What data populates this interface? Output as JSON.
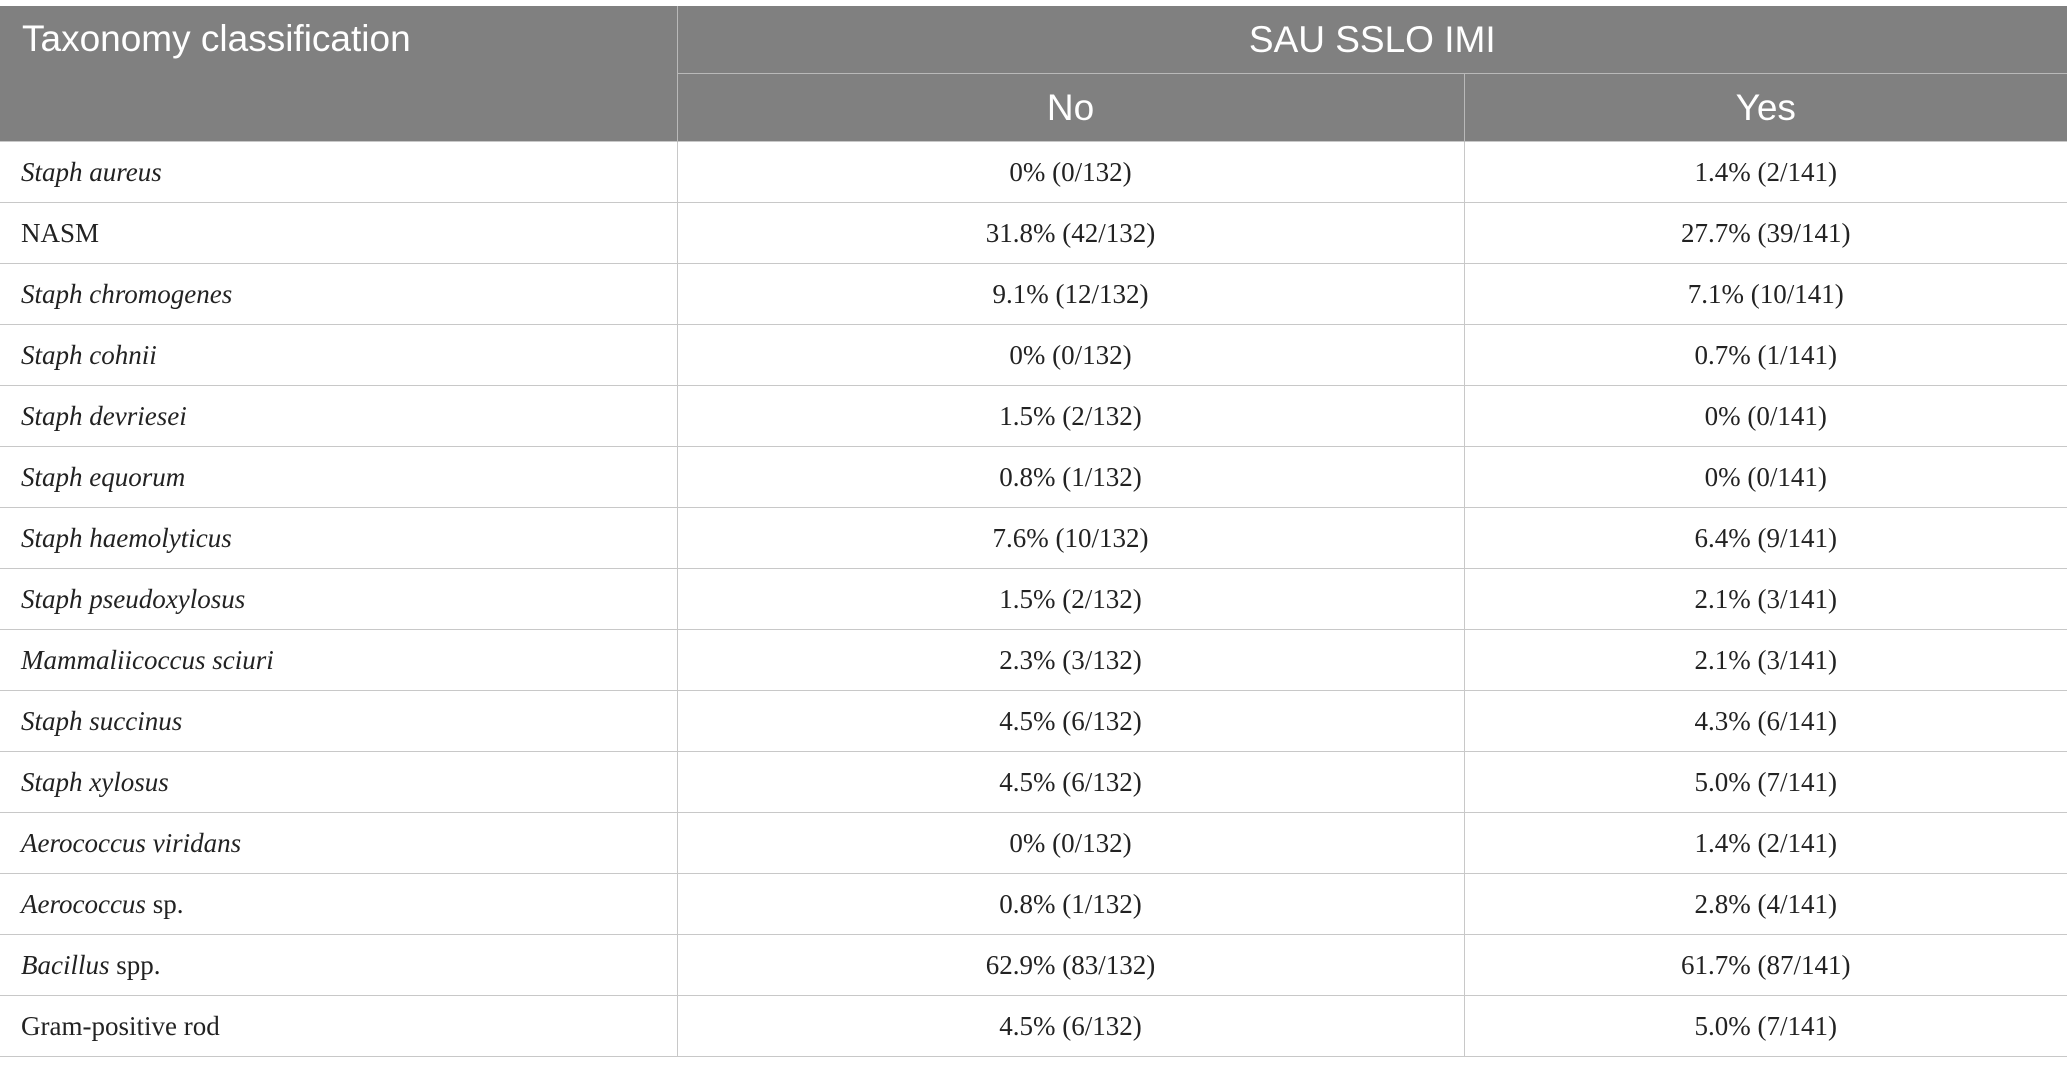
{
  "header": {
    "taxonomy": "Taxonomy classification",
    "group": "SAU SSLO IMI",
    "no": "No",
    "yes": "Yes"
  },
  "rows": [
    {
      "name": "Staph aureus",
      "suffix": "",
      "no": "0% (0/132)",
      "yes": "1.4% (2/141)"
    },
    {
      "name": "",
      "suffix": "NASM",
      "no": "31.8% (42/132)",
      "yes": "27.7% (39/141)"
    },
    {
      "name": "Staph chromogenes",
      "suffix": "",
      "no": "9.1% (12/132)",
      "yes": "7.1% (10/141)"
    },
    {
      "name": "Staph cohnii",
      "suffix": "",
      "no": "0% (0/132)",
      "yes": "0.7% (1/141)"
    },
    {
      "name": "Staph devriesei",
      "suffix": "",
      "no": "1.5% (2/132)",
      "yes": "0% (0/141)"
    },
    {
      "name": "Staph equorum",
      "suffix": "",
      "no": "0.8% (1/132)",
      "yes": "0% (0/141)"
    },
    {
      "name": "Staph haemolyticus",
      "suffix": "",
      "no": "7.6% (10/132)",
      "yes": "6.4% (9/141)"
    },
    {
      "name": "Staph pseudoxylosus",
      "suffix": "",
      "no": "1.5% (2/132)",
      "yes": "2.1% (3/141)"
    },
    {
      "name": "Mammaliicoccus sciuri",
      "suffix": "",
      "no": "2.3% (3/132)",
      "yes": "2.1% (3/141)"
    },
    {
      "name": "Staph succinus",
      "suffix": "",
      "no": "4.5% (6/132)",
      "yes": "4.3% (6/141)"
    },
    {
      "name": "Staph xylosus",
      "suffix": "",
      "no": "4.5% (6/132)",
      "yes": "5.0% (7/141)"
    },
    {
      "name": "Aerococcus viridans",
      "suffix": "",
      "no": "0% (0/132)",
      "yes": "1.4% (2/141)"
    },
    {
      "name": "Aerococcus",
      "suffix": " sp.",
      "no": "0.8% (1/132)",
      "yes": "2.8% (4/141)"
    },
    {
      "name": "Bacillus",
      "suffix": " spp.",
      "no": "62.9% (83/132)",
      "yes": "61.7% (87/141)"
    },
    {
      "name": "",
      "suffix": "Gram-positive rod",
      "no": "4.5% (6/132)",
      "yes": "5.0% (7/141)"
    }
  ]
}
